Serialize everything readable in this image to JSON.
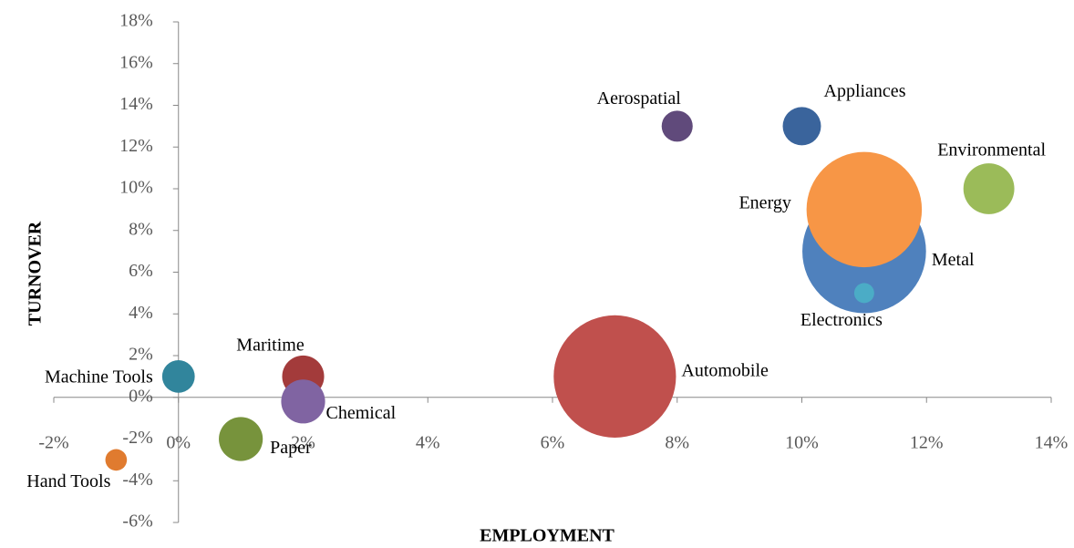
{
  "chart_data": {
    "type": "bubble",
    "x_label": "EMPLOYMENT",
    "y_label": "TURNOVER",
    "xlim": [
      -2,
      14
    ],
    "xticks": [
      {
        "value": -2,
        "label": "-2%"
      },
      {
        "value": 0,
        "label": "0%"
      },
      {
        "value": 2,
        "label": "2%"
      },
      {
        "value": 4,
        "label": "4%"
      },
      {
        "value": 6,
        "label": "6%"
      },
      {
        "value": 8,
        "label": "8%"
      },
      {
        "value": 10,
        "label": "10%"
      },
      {
        "value": 12,
        "label": "12%"
      },
      {
        "value": 14,
        "label": "14%"
      }
    ],
    "ylim": [
      -6,
      18
    ],
    "yticks": [
      {
        "value": -6,
        "label": "-6%"
      },
      {
        "value": -4,
        "label": "-4%"
      },
      {
        "value": -2,
        "label": "-2%"
      },
      {
        "value": 0,
        "label": "0%"
      },
      {
        "value": 2,
        "label": "2%"
      },
      {
        "value": 4,
        "label": "4%"
      },
      {
        "value": 6,
        "label": "6%"
      },
      {
        "value": 8,
        "label": "8%"
      },
      {
        "value": 10,
        "label": "10%"
      },
      {
        "value": 12,
        "label": "12%"
      },
      {
        "value": 14,
        "label": "14%"
      },
      {
        "value": 16,
        "label": "16%"
      },
      {
        "value": 18,
        "label": "18%"
      }
    ],
    "grid": false,
    "series": [
      {
        "name": "Aerospatial",
        "color": "#604a7b",
        "x": [
          8
        ],
        "values": [
          13
        ],
        "sizes": [
          2.9
        ]
      },
      {
        "name": "Appliances",
        "color": "#3a649c",
        "x": [
          10
        ],
        "values": [
          13
        ],
        "sizes": [
          4.4
        ]
      },
      {
        "name": "Environmental",
        "color": "#9bbb59",
        "x": [
          13
        ],
        "values": [
          10
        ],
        "sizes": [
          7.8
        ]
      },
      {
        "name": "Metal",
        "color": "#4f81bd",
        "x": [
          11
        ],
        "values": [
          7
        ],
        "sizes": [
          46
        ]
      },
      {
        "name": "Energy",
        "color": "#f79646",
        "x": [
          11
        ],
        "values": [
          9
        ],
        "sizes": [
          40
        ]
      },
      {
        "name": "Electronics",
        "color": "#4bacc6",
        "x": [
          11
        ],
        "values": [
          5
        ],
        "sizes": [
          1.2
        ]
      },
      {
        "name": "Automobile",
        "color": "#c0504d",
        "x": [
          7
        ],
        "values": [
          1
        ],
        "sizes": [
          45
        ]
      },
      {
        "name": "Maritime",
        "color": "#a33b3b",
        "x": [
          2
        ],
        "values": [
          1
        ],
        "sizes": [
          5.3
        ]
      },
      {
        "name": "Chemical",
        "color": "#8064a2",
        "x": [
          2
        ],
        "values": [
          -0.2
        ],
        "sizes": [
          5.8
        ]
      },
      {
        "name": "Machine Tools",
        "color": "#31859c",
        "x": [
          0
        ],
        "values": [
          1
        ],
        "sizes": [
          3.2
        ]
      },
      {
        "name": "Paper",
        "color": "#77933c",
        "x": [
          1
        ],
        "values": [
          -2
        ],
        "sizes": [
          5.8
        ]
      },
      {
        "name": "Hand Tools",
        "color": "#e07b2f",
        "x": [
          -1
        ],
        "values": [
          -3
        ],
        "sizes": [
          1.4
        ]
      }
    ]
  }
}
